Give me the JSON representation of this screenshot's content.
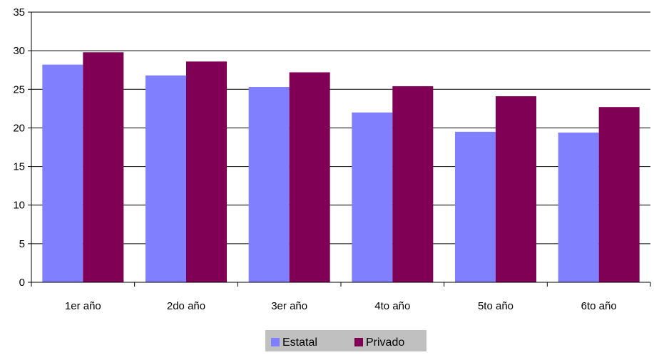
{
  "chart_data": {
    "type": "bar",
    "categories": [
      "1er año",
      "2do año",
      "3er año",
      "4to año",
      "5to año",
      "6to año"
    ],
    "series": [
      {
        "name": "Estatal",
        "values": [
          28.2,
          26.8,
          25.3,
          22.0,
          19.5,
          19.4
        ],
        "color": "#8080FF"
      },
      {
        "name": "Privado",
        "values": [
          29.8,
          28.6,
          27.2,
          25.4,
          24.1,
          22.7
        ],
        "color": "#800055"
      }
    ],
    "ylim": [
      0,
      35
    ],
    "yticks": [
      "0",
      "5",
      "10",
      "15",
      "20",
      "25",
      "30",
      "35"
    ],
    "grid": true,
    "legend": "bottom-center",
    "legend_background": "#C0C0C0"
  }
}
